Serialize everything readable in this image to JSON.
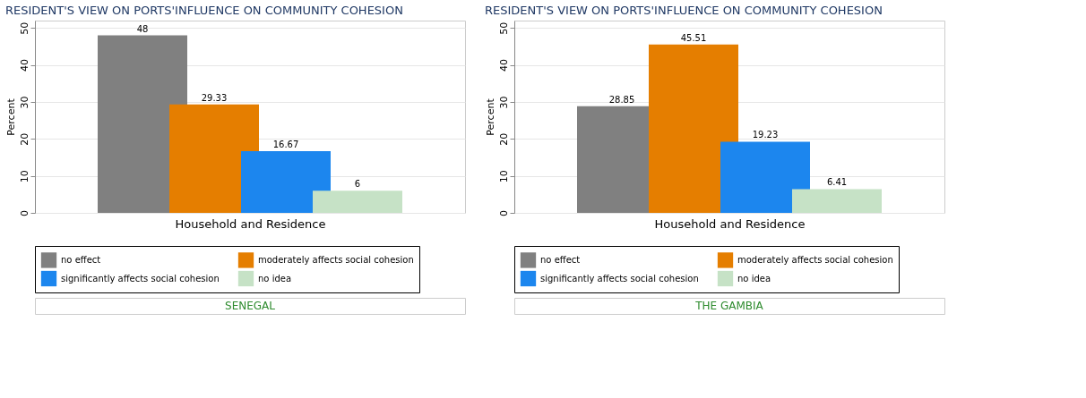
{
  "chart_data": [
    {
      "type": "bar",
      "title": "RESIDENT'S VIEW ON PORTS'INFLUENCE ON COMMUNITY COHESION",
      "xlabel": "Household and Residence",
      "ylabel": "Percent",
      "categories": [
        null
      ],
      "series": [
        {
          "name": "no effect",
          "color": "#808080",
          "values": [
            48
          ]
        },
        {
          "name": "moderately affects social cohesion",
          "color": "#e57e00",
          "values": [
            29.33
          ]
        },
        {
          "name": "significantly affects social cohesion",
          "color": "#1c86ee",
          "values": [
            16.67
          ]
        },
        {
          "name": "no idea",
          "color": "#c6e2c6",
          "values": [
            6
          ]
        }
      ],
      "ylim": [
        0,
        52
      ],
      "yticks": [
        0,
        10,
        20,
        30,
        40,
        50
      ],
      "grid": "y",
      "legend": "bottom",
      "data_labels": true,
      "annotations": [
        "SENEGAL"
      ]
    },
    {
      "type": "bar",
      "title": "RESIDENT'S VIEW ON PORTS'INFLUENCE ON COMMUNITY COHESION",
      "xlabel": "Household and Residence",
      "ylabel": "Percent",
      "categories": [
        null
      ],
      "series": [
        {
          "name": "no effect",
          "color": "#808080",
          "values": [
            28.85
          ]
        },
        {
          "name": "moderately affects social cohesion",
          "color": "#e57e00",
          "values": [
            45.51
          ]
        },
        {
          "name": "significantly affects social cohesion",
          "color": "#1c86ee",
          "values": [
            19.23
          ]
        },
        {
          "name": "no idea",
          "color": "#c6e2c6",
          "values": [
            6.41
          ]
        }
      ],
      "ylim": [
        0,
        52
      ],
      "yticks": [
        0,
        10,
        20,
        30,
        40,
        50
      ],
      "grid": "y",
      "legend": "bottom",
      "data_labels": true,
      "annotations": [
        "THE GAMBIA"
      ]
    }
  ]
}
